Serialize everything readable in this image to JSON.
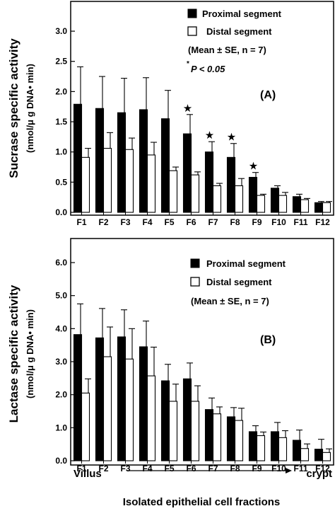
{
  "xlabel": "Isolated epithelial cell fractions",
  "x_end_labels": {
    "left": "Villus",
    "right": "crypt"
  },
  "chart_data": [
    {
      "type": "bar",
      "panel_label": "(A)",
      "ylabel": "Sucrase specific activity",
      "ylabel_units": "(nmol/μ g DNA• min)",
      "ylim": [
        0,
        3.2
      ],
      "yticks": [
        "0.0",
        "0.5",
        "1.0",
        "1.5",
        "2.0",
        "2.5",
        "3.0"
      ],
      "categories": [
        "F1",
        "F2",
        "F3",
        "F4",
        "F5",
        "F6",
        "F7",
        "F8",
        "F9",
        "F10",
        "F11",
        "F12"
      ],
      "series": [
        {
          "name": "Proximal segment",
          "color": "#000000",
          "values": [
            1.79,
            1.72,
            1.65,
            1.7,
            1.55,
            1.3,
            1.0,
            0.91,
            0.58,
            0.4,
            0.26,
            0.16
          ],
          "errors": [
            0.62,
            0.53,
            0.57,
            0.53,
            0.47,
            0.32,
            0.17,
            0.23,
            0.08,
            0.04,
            0.04,
            0.02
          ]
        },
        {
          "name": "Distal segment",
          "color": "#ffffff",
          "values": [
            0.91,
            1.06,
            1.04,
            0.95,
            0.69,
            0.62,
            0.44,
            0.44,
            0.28,
            0.28,
            0.21,
            0.16
          ],
          "errors": [
            0.15,
            0.26,
            0.19,
            0.21,
            0.06,
            0.05,
            0.04,
            0.12,
            0.02,
            0.05,
            0.02,
            0.02
          ]
        }
      ],
      "significant": [
        false,
        false,
        false,
        false,
        false,
        true,
        true,
        true,
        true,
        false,
        false,
        false
      ],
      "legend_note": "(Mean ± SE, n = 7)",
      "significance_note_prefix": "*",
      "significance_note": "P < 0.05",
      "legend_position": "top-right"
    },
    {
      "type": "bar",
      "panel_label": "(B)",
      "ylabel": "Lactase specific activity",
      "ylabel_units": "(nmol/μ g DNA• min)",
      "ylim": [
        0,
        6.3
      ],
      "yticks": [
        "0.0",
        "1.0",
        "2.0",
        "3.0",
        "4.0",
        "5.0",
        "6.0"
      ],
      "categories": [
        "F1",
        "F2",
        "F3",
        "F4",
        "F5",
        "F6",
        "F7",
        "F8",
        "F9",
        "F10",
        "F11",
        "F12"
      ],
      "series": [
        {
          "name": "Proximal segment",
          "color": "#000000",
          "values": [
            3.82,
            3.72,
            3.75,
            3.45,
            2.42,
            2.48,
            1.55,
            1.33,
            0.88,
            0.88,
            0.62,
            0.35
          ],
          "errors": [
            0.93,
            0.89,
            0.82,
            0.78,
            0.5,
            0.48,
            0.35,
            0.28,
            0.18,
            0.28,
            0.31,
            0.3
          ]
        },
        {
          "name": "Distal segment",
          "color": "#ffffff",
          "values": [
            2.05,
            3.15,
            3.08,
            2.57,
            1.8,
            1.8,
            1.42,
            1.22,
            0.76,
            0.7,
            0.37,
            0.25
          ],
          "errors": [
            0.43,
            0.9,
            0.92,
            0.87,
            0.52,
            0.47,
            0.21,
            0.37,
            0.11,
            0.21,
            0.14,
            0.11
          ]
        }
      ],
      "legend_note": "(Mean ± SE, n = 7)",
      "legend_position": "top-right"
    }
  ]
}
